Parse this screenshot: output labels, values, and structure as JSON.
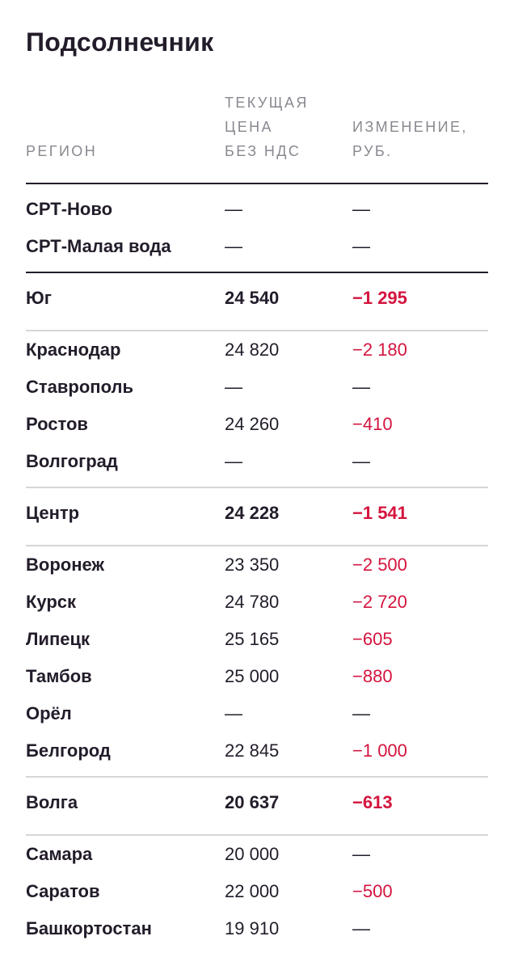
{
  "title": "Подсолнечник",
  "headers": {
    "region": "РЕГИОН",
    "price": "ТЕКУЩАЯ\nЦЕНА\nБЕЗ НДС",
    "change": "ИЗМЕНЕНИЕ,\nРУБ."
  },
  "rows": [
    {
      "region": "СРТ-Ново",
      "price": "—",
      "change": "—",
      "type": "item",
      "neg": false
    },
    {
      "region": "СРТ-Малая вода",
      "price": "—",
      "change": "—",
      "type": "item",
      "neg": false
    },
    {
      "region": "Юг",
      "price": "24 540",
      "change": "−1 295",
      "type": "total",
      "neg": true
    },
    {
      "region": "Краснодар",
      "price": "24 820",
      "change": "−2 180",
      "type": "item",
      "neg": true
    },
    {
      "region": "Ставрополь",
      "price": "—",
      "change": "—",
      "type": "item",
      "neg": false
    },
    {
      "region": "Ростов",
      "price": "24 260",
      "change": "−410",
      "type": "item",
      "neg": true
    },
    {
      "region": "Волгоград",
      "price": "—",
      "change": "—",
      "type": "item",
      "neg": false
    },
    {
      "region": "Центр",
      "price": "24 228",
      "change": "−1 541",
      "type": "total",
      "neg": true
    },
    {
      "region": "Воронеж",
      "price": "23 350",
      "change": "−2 500",
      "type": "item",
      "neg": true
    },
    {
      "region": "Курск",
      "price": "24 780",
      "change": "−2 720",
      "type": "item",
      "neg": true
    },
    {
      "region": "Липецк",
      "price": "25 165",
      "change": "−605",
      "type": "item",
      "neg": true
    },
    {
      "region": "Тамбов",
      "price": "25 000",
      "change": "−880",
      "type": "item",
      "neg": true
    },
    {
      "region": "Орёл",
      "price": "—",
      "change": "—",
      "type": "item",
      "neg": false
    },
    {
      "region": "Белгород",
      "price": "22 845",
      "change": "−1 000",
      "type": "item",
      "neg": true
    },
    {
      "region": "Волга",
      "price": "20 637",
      "change": "−613",
      "type": "total",
      "neg": true
    },
    {
      "region": "Самара",
      "price": "20 000",
      "change": "—",
      "type": "item",
      "neg": false
    },
    {
      "region": "Саратов",
      "price": "22 000",
      "change": "−500",
      "type": "item",
      "neg": true
    },
    {
      "region": "Башкортостан",
      "price": "19 910",
      "change": "—",
      "type": "item",
      "neg": false
    }
  ],
  "colors": {
    "text": "#231c2a",
    "negative": "#d4143e",
    "header": "#8b8790",
    "divider_light": "#d7d5d9"
  }
}
